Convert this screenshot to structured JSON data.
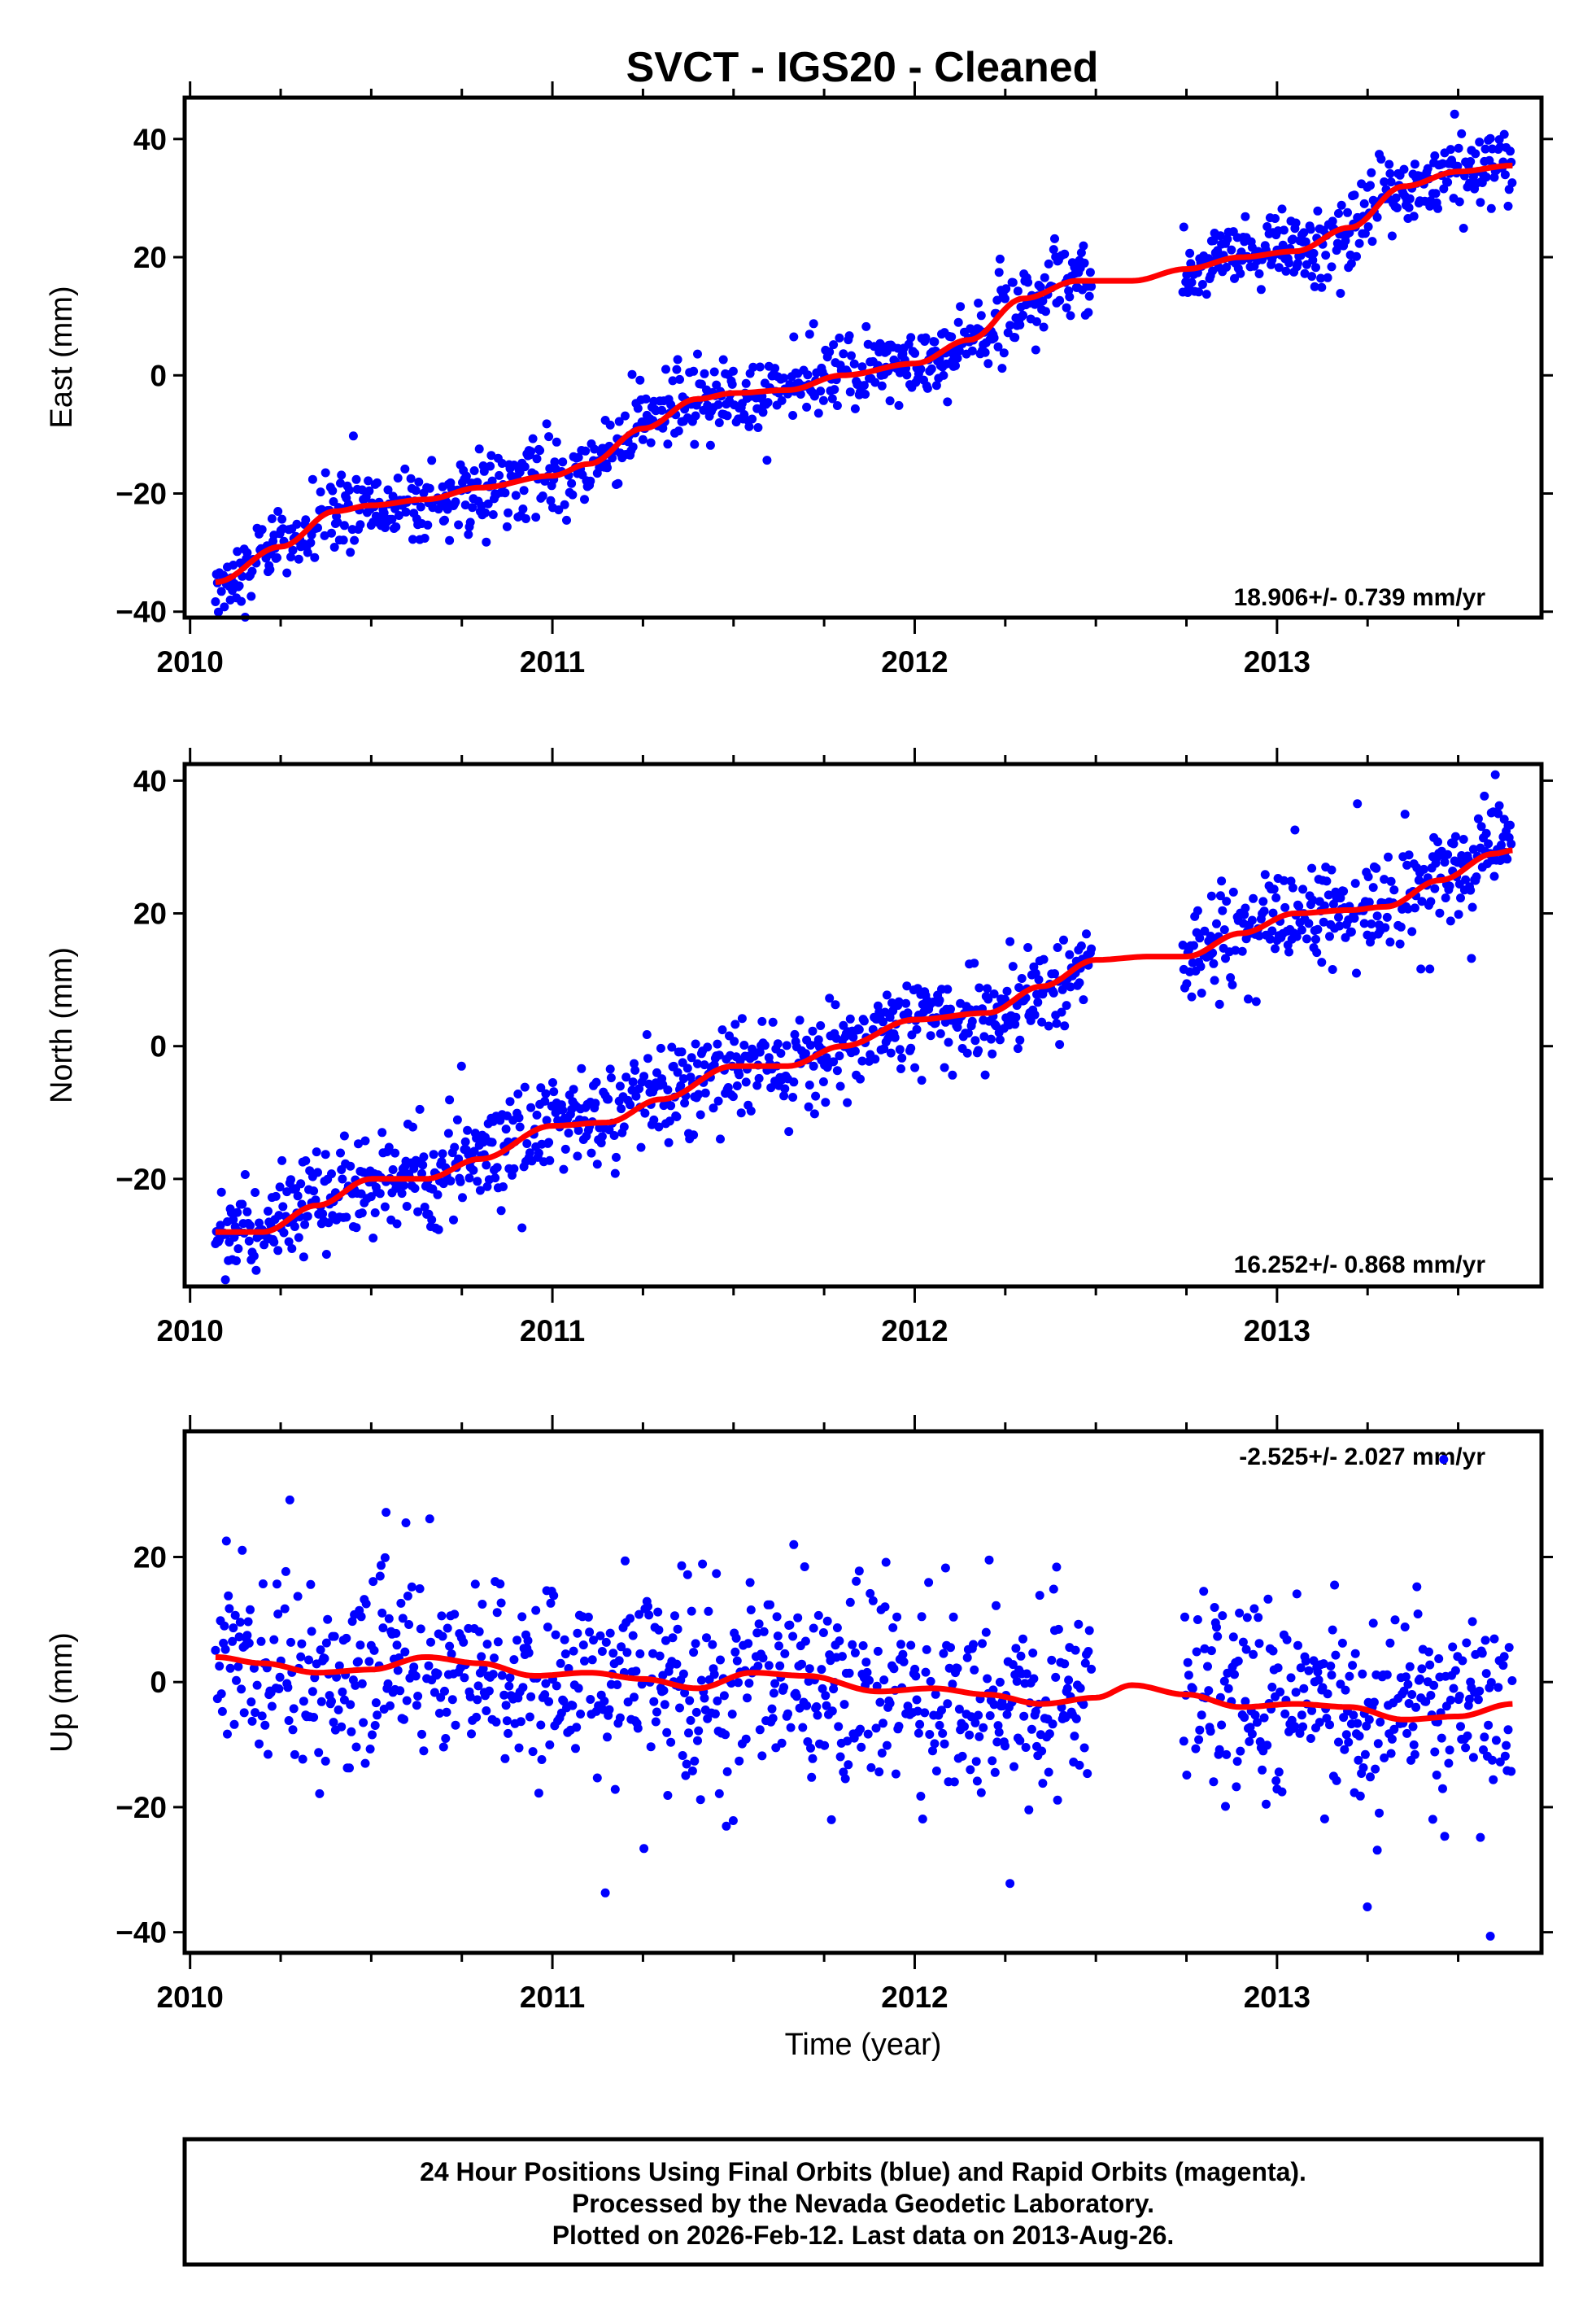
{
  "title": "SVCT  - IGS20 - Cleaned",
  "xlabel": "Time (year)",
  "footer": {
    "line1": "24 Hour Positions Using Final Orbits (blue) and Rapid Orbits (magenta).",
    "line2": "Processed by the Nevada Geodetic Laboratory.",
    "line3": "Plotted on 2026-Feb-12. Last data on 2013-Aug-26."
  },
  "colors": {
    "points": "#0000ff",
    "fit": "#ff0000",
    "frame": "#000000"
  },
  "chart_data": {
    "type": "scatter",
    "xlim": [
      2009.985,
      2013.73
    ],
    "xticks": [
      2010,
      2011,
      2012,
      2013
    ],
    "xminor_step": 0.25,
    "data_segments": [
      [
        2010.07,
        2012.49
      ],
      [
        2012.74,
        2013.65
      ]
    ],
    "panels": [
      {
        "ylabel": "East (mm)",
        "ylim": [
          -41,
          47
        ],
        "yticks": [
          -40,
          -20,
          0,
          20,
          40
        ],
        "velocity": "18.906+/- 0.739 mm/yr",
        "velocity_position": "bottom-right",
        "noise_sigma": 3.2,
        "fit": {
          "x": [
            2010.07,
            2010.25,
            2010.4,
            2010.5,
            2010.65,
            2010.8,
            2011.0,
            2011.1,
            2011.25,
            2011.4,
            2011.5,
            2011.65,
            2011.8,
            2012.0,
            2012.15,
            2012.3,
            2012.45,
            2012.6,
            2012.75,
            2012.9,
            2013.05,
            2013.2,
            2013.35,
            2013.5,
            2013.65
          ],
          "y": [
            -35,
            -29,
            -23,
            -22,
            -21,
            -19,
            -17,
            -15,
            -9,
            -4,
            -3,
            -2.5,
            0,
            2,
            6,
            13,
            16,
            16,
            18,
            20,
            21,
            25,
            32,
            34.5,
            35.5
          ]
        }
      },
      {
        "ylabel": "North (mm)",
        "ylim": [
          -36.2,
          42.5
        ],
        "yticks": [
          -20,
          0,
          20,
          40
        ],
        "velocity": "16.252+/- 0.868 mm/yr",
        "velocity_position": "bottom-right",
        "noise_sigma": 3.6,
        "fit": {
          "x": [
            2010.07,
            2010.2,
            2010.35,
            2010.5,
            2010.65,
            2010.8,
            2011.0,
            2011.15,
            2011.3,
            2011.5,
            2011.65,
            2011.8,
            2012.0,
            2012.2,
            2012.35,
            2012.5,
            2012.65,
            2012.75,
            2012.9,
            2013.05,
            2013.2,
            2013.3,
            2013.45,
            2013.6,
            2013.65
          ],
          "y": [
            -28,
            -28,
            -24,
            -20,
            -20,
            -17,
            -12,
            -11.5,
            -8,
            -3,
            -3,
            0,
            4,
            5,
            9,
            13,
            13.5,
            13.5,
            17,
            20,
            20.5,
            21,
            25,
            29,
            29.5
          ]
        }
      },
      {
        "ylabel": "Up (mm)",
        "ylim": [
          -43.3,
          40.1
        ],
        "yticks": [
          -40,
          -20,
          0,
          20
        ],
        "velocity": "-2.525+/- 2.027 mm/yr",
        "velocity_position": "top-right",
        "noise_sigma": 7.5,
        "fit": {
          "x": [
            2010.07,
            2010.2,
            2010.35,
            2010.5,
            2010.65,
            2010.8,
            2010.95,
            2011.1,
            2011.25,
            2011.4,
            2011.55,
            2011.7,
            2011.9,
            2012.05,
            2012.2,
            2012.35,
            2012.5,
            2012.6,
            2012.75,
            2012.9,
            2013.05,
            2013.2,
            2013.35,
            2013.5,
            2013.65
          ],
          "y": [
            4,
            3,
            1.5,
            2,
            4,
            3,
            1,
            1.5,
            0.5,
            -1,
            1.5,
            1,
            -1.5,
            -1,
            -2,
            -3.5,
            -2.5,
            -0.5,
            -2,
            -4,
            -3.5,
            -4,
            -6,
            -5.5,
            -3.5
          ]
        }
      }
    ]
  }
}
